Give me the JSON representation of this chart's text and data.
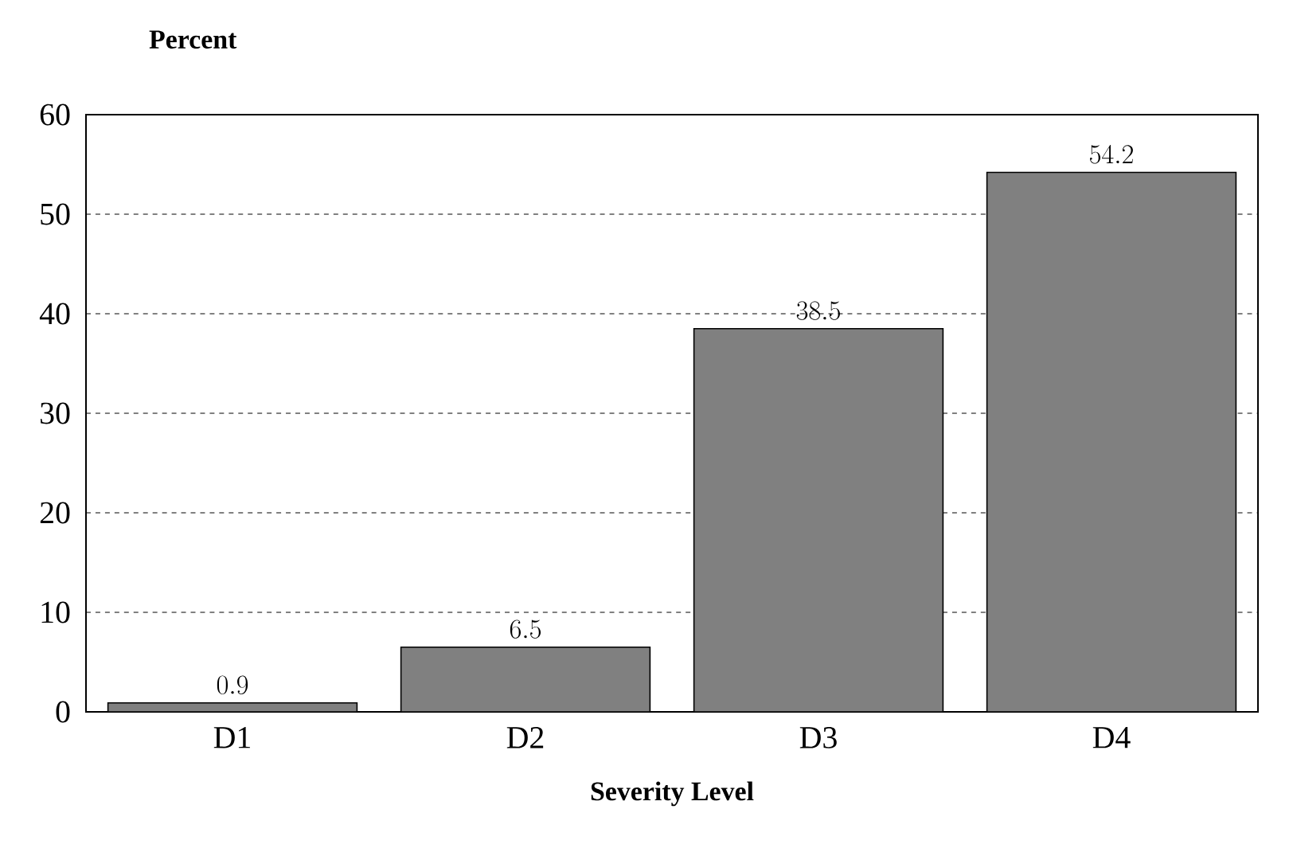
{
  "chart_data": {
    "type": "bar",
    "ylabel": "Percent",
    "xlabel": "Severity Level",
    "categories": [
      "D1",
      "D2",
      "D3",
      "D4"
    ],
    "values": [
      0.9,
      6.5,
      38.5,
      54.2
    ],
    "color": "#808080",
    "ylim": [
      0,
      60
    ],
    "yticks": [
      0,
      10,
      20,
      30,
      40,
      50,
      60
    ],
    "grid": "y",
    "data_labels": true
  }
}
